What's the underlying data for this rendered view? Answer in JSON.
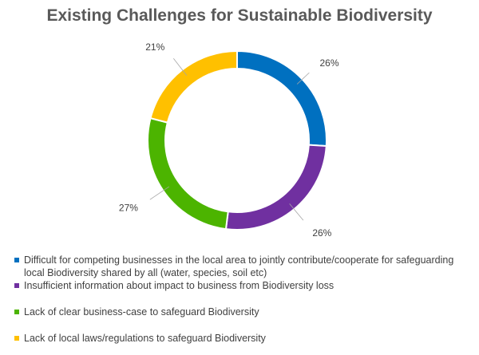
{
  "chart_data": {
    "type": "pie",
    "variant": "donut",
    "title": "Existing Challenges for Sustainable Biodiversity",
    "categories": [
      "Difficult for competing businesses in the local area to jointly contribute/cooperate for safeguarding local Biodiversity shared by all (water, species, soil etc)",
      "Insufficient information about impact to business from Biodiversity loss",
      "Lack of clear business-case to safeguard Biodiversity",
      "Lack of local laws/regulations to safeguard Biodiversity"
    ],
    "values": [
      26,
      26,
      27,
      21
    ],
    "value_labels": [
      "26%",
      "26%",
      "27%",
      "21%"
    ],
    "colors": [
      "#0070C0",
      "#7030A0",
      "#4CB400",
      "#FFC000"
    ],
    "legend_position": "bottom"
  }
}
